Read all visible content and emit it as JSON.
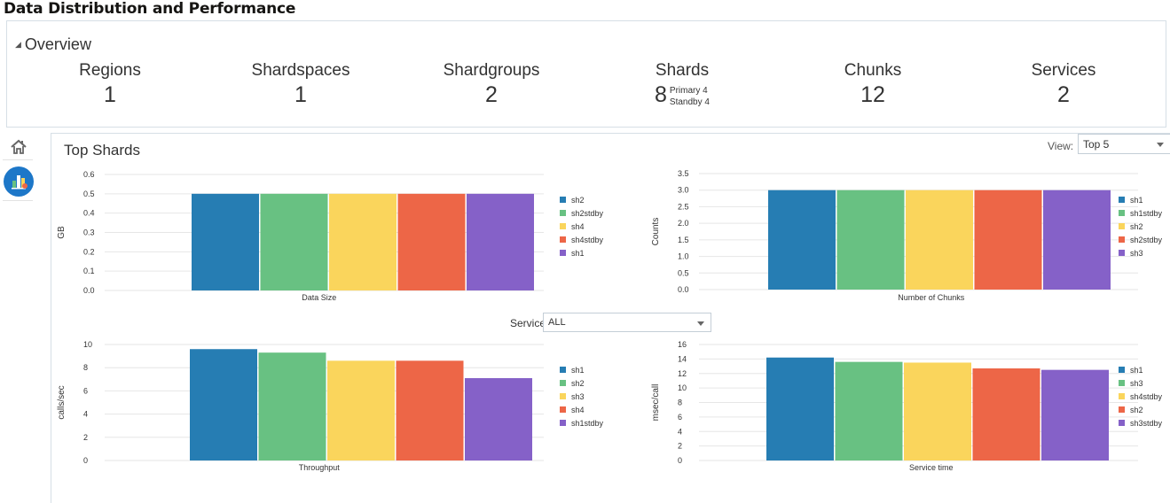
{
  "page": {
    "title": "Data Distribution and Performance"
  },
  "overview": {
    "header": "Overview",
    "stats": [
      {
        "label": "Regions",
        "value": "1"
      },
      {
        "label": "Shardspaces",
        "value": "1"
      },
      {
        "label": "Shardgroups",
        "value": "2"
      },
      {
        "label": "Shards",
        "value": "8",
        "primary": "Primary 4",
        "standby": "Standby 4"
      },
      {
        "label": "Chunks",
        "value": "12"
      },
      {
        "label": "Services",
        "value": "2"
      }
    ]
  },
  "sidebar": {
    "icons": [
      "home-icon",
      "dashboard-chart-icon"
    ]
  },
  "top_shards": {
    "title": "Top Shards",
    "view_label": "View:",
    "view_value": "Top 5",
    "service_label": "Service",
    "service_value": "ALL"
  },
  "colors": [
    "#267db3",
    "#68c182",
    "#fad55c",
    "#ed6647",
    "#8561c8"
  ],
  "chart_data": [
    {
      "type": "bar",
      "title": "Data Size",
      "xlabel": "Data Size",
      "ylabel": "GB",
      "ylim": [
        0,
        0.6
      ],
      "yticks": [
        "0.0",
        "0.1",
        "0.2",
        "0.3",
        "0.4",
        "0.5",
        "0.6"
      ],
      "series": [
        {
          "name": "sh2",
          "values": [
            0.5
          ]
        },
        {
          "name": "sh2stdby",
          "values": [
            0.5
          ]
        },
        {
          "name": "sh4",
          "values": [
            0.5
          ]
        },
        {
          "name": "sh4stdby",
          "values": [
            0.5
          ]
        },
        {
          "name": "sh1",
          "values": [
            0.5
          ]
        }
      ]
    },
    {
      "type": "bar",
      "title": "Number of Chunks",
      "xlabel": "Number of Chunks",
      "ylabel": "Counts",
      "ylim": [
        0,
        3.5
      ],
      "yticks": [
        "0.0",
        "0.5",
        "1.0",
        "1.5",
        "2.0",
        "2.5",
        "3.0",
        "3.5"
      ],
      "series": [
        {
          "name": "sh1",
          "values": [
            3
          ]
        },
        {
          "name": "sh1stdby",
          "values": [
            3
          ]
        },
        {
          "name": "sh2",
          "values": [
            3
          ]
        },
        {
          "name": "sh2stdby",
          "values": [
            3
          ]
        },
        {
          "name": "sh3",
          "values": [
            3
          ]
        }
      ]
    },
    {
      "type": "bar",
      "title": "Throughput",
      "xlabel": "Throughput",
      "ylabel": "calls/sec",
      "ylim": [
        0,
        10
      ],
      "yticks": [
        "0",
        "2",
        "4",
        "6",
        "8",
        "10"
      ],
      "series": [
        {
          "name": "sh1",
          "values": [
            9.6
          ]
        },
        {
          "name": "sh2",
          "values": [
            9.3
          ]
        },
        {
          "name": "sh3",
          "values": [
            8.6
          ]
        },
        {
          "name": "sh4",
          "values": [
            8.6
          ]
        },
        {
          "name": "sh1stdby",
          "values": [
            7.1
          ]
        }
      ]
    },
    {
      "type": "bar",
      "title": "Service time",
      "xlabel": "Service time",
      "ylabel": "msec/call",
      "ylim": [
        0,
        16
      ],
      "yticks": [
        "0",
        "2",
        "4",
        "6",
        "8",
        "10",
        "12",
        "14",
        "16"
      ],
      "series": [
        {
          "name": "sh1",
          "values": [
            14.2
          ]
        },
        {
          "name": "sh3",
          "values": [
            13.6
          ]
        },
        {
          "name": "sh4stdby",
          "values": [
            13.5
          ]
        },
        {
          "name": "sh2",
          "values": [
            12.7
          ]
        },
        {
          "name": "sh3stdby",
          "values": [
            12.5
          ]
        }
      ]
    }
  ]
}
